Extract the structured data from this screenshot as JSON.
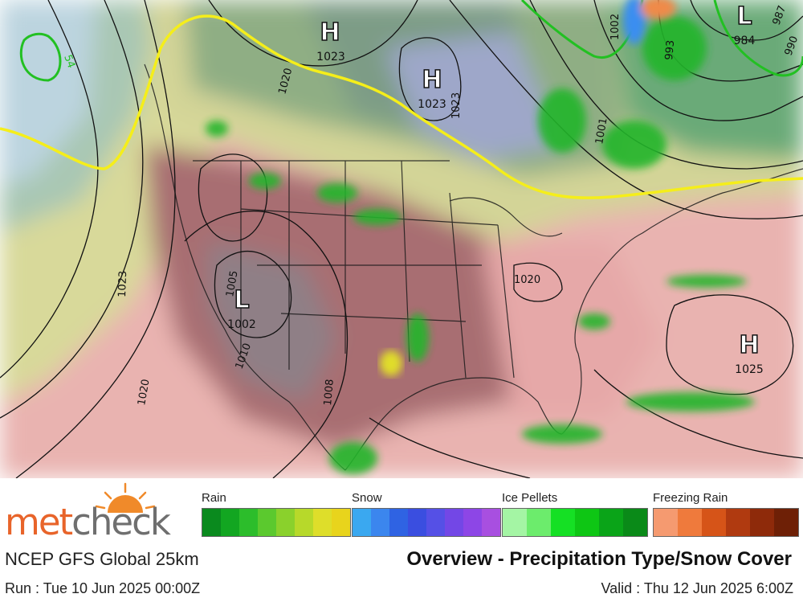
{
  "map": {
    "highs": [
      {
        "symbol": "H",
        "value": "1023"
      },
      {
        "symbol": "H",
        "value": "1023"
      },
      {
        "symbol": "H",
        "value": "1025"
      }
    ],
    "lows": [
      {
        "symbol": "L",
        "value": "984"
      },
      {
        "symbol": "L",
        "value": "1002"
      }
    ],
    "isobar_labels": [
      "1020",
      "1023",
      "1020",
      "1005",
      "1008",
      "1010",
      "1020",
      "1023",
      "1002",
      "1001",
      "993",
      "990",
      "987",
      "54"
    ]
  },
  "legend": {
    "rain": {
      "label": "Rain",
      "colors": [
        "#0a8a1e",
        "#12a621",
        "#2cbd2b",
        "#5bc92e",
        "#8ad12c",
        "#b7d92a",
        "#dede2a",
        "#e8d41c"
      ]
    },
    "snow": {
      "label": "Snow",
      "colors": [
        "#3aa8f0",
        "#3b86ee",
        "#2f63e3",
        "#3a4ee0",
        "#5550e6",
        "#7347e6",
        "#8d46e6",
        "#a84fe0"
      ]
    },
    "ice": {
      "label": "Ice Pellets",
      "colors": [
        "#a4f5a4",
        "#6cec6c",
        "#15e024",
        "#0ec614",
        "#0aa418",
        "#0a8a18"
      ]
    },
    "freezing": {
      "label": "Freezing Rain",
      "colors": [
        "#f59a70",
        "#ef7a3c",
        "#d65418",
        "#b03a10",
        "#8e2a0a",
        "#6e2006"
      ]
    }
  },
  "footer": {
    "logo_a": "met",
    "logo_b": "check",
    "model": "NCEP GFS Global 25km",
    "title": "Overview - Precipitation Type/Snow Cover",
    "run": "Run : Tue 10 Jun 2025 00:00Z",
    "valid": "Valid : Thu 12 Jun 2025 6:00Z"
  }
}
